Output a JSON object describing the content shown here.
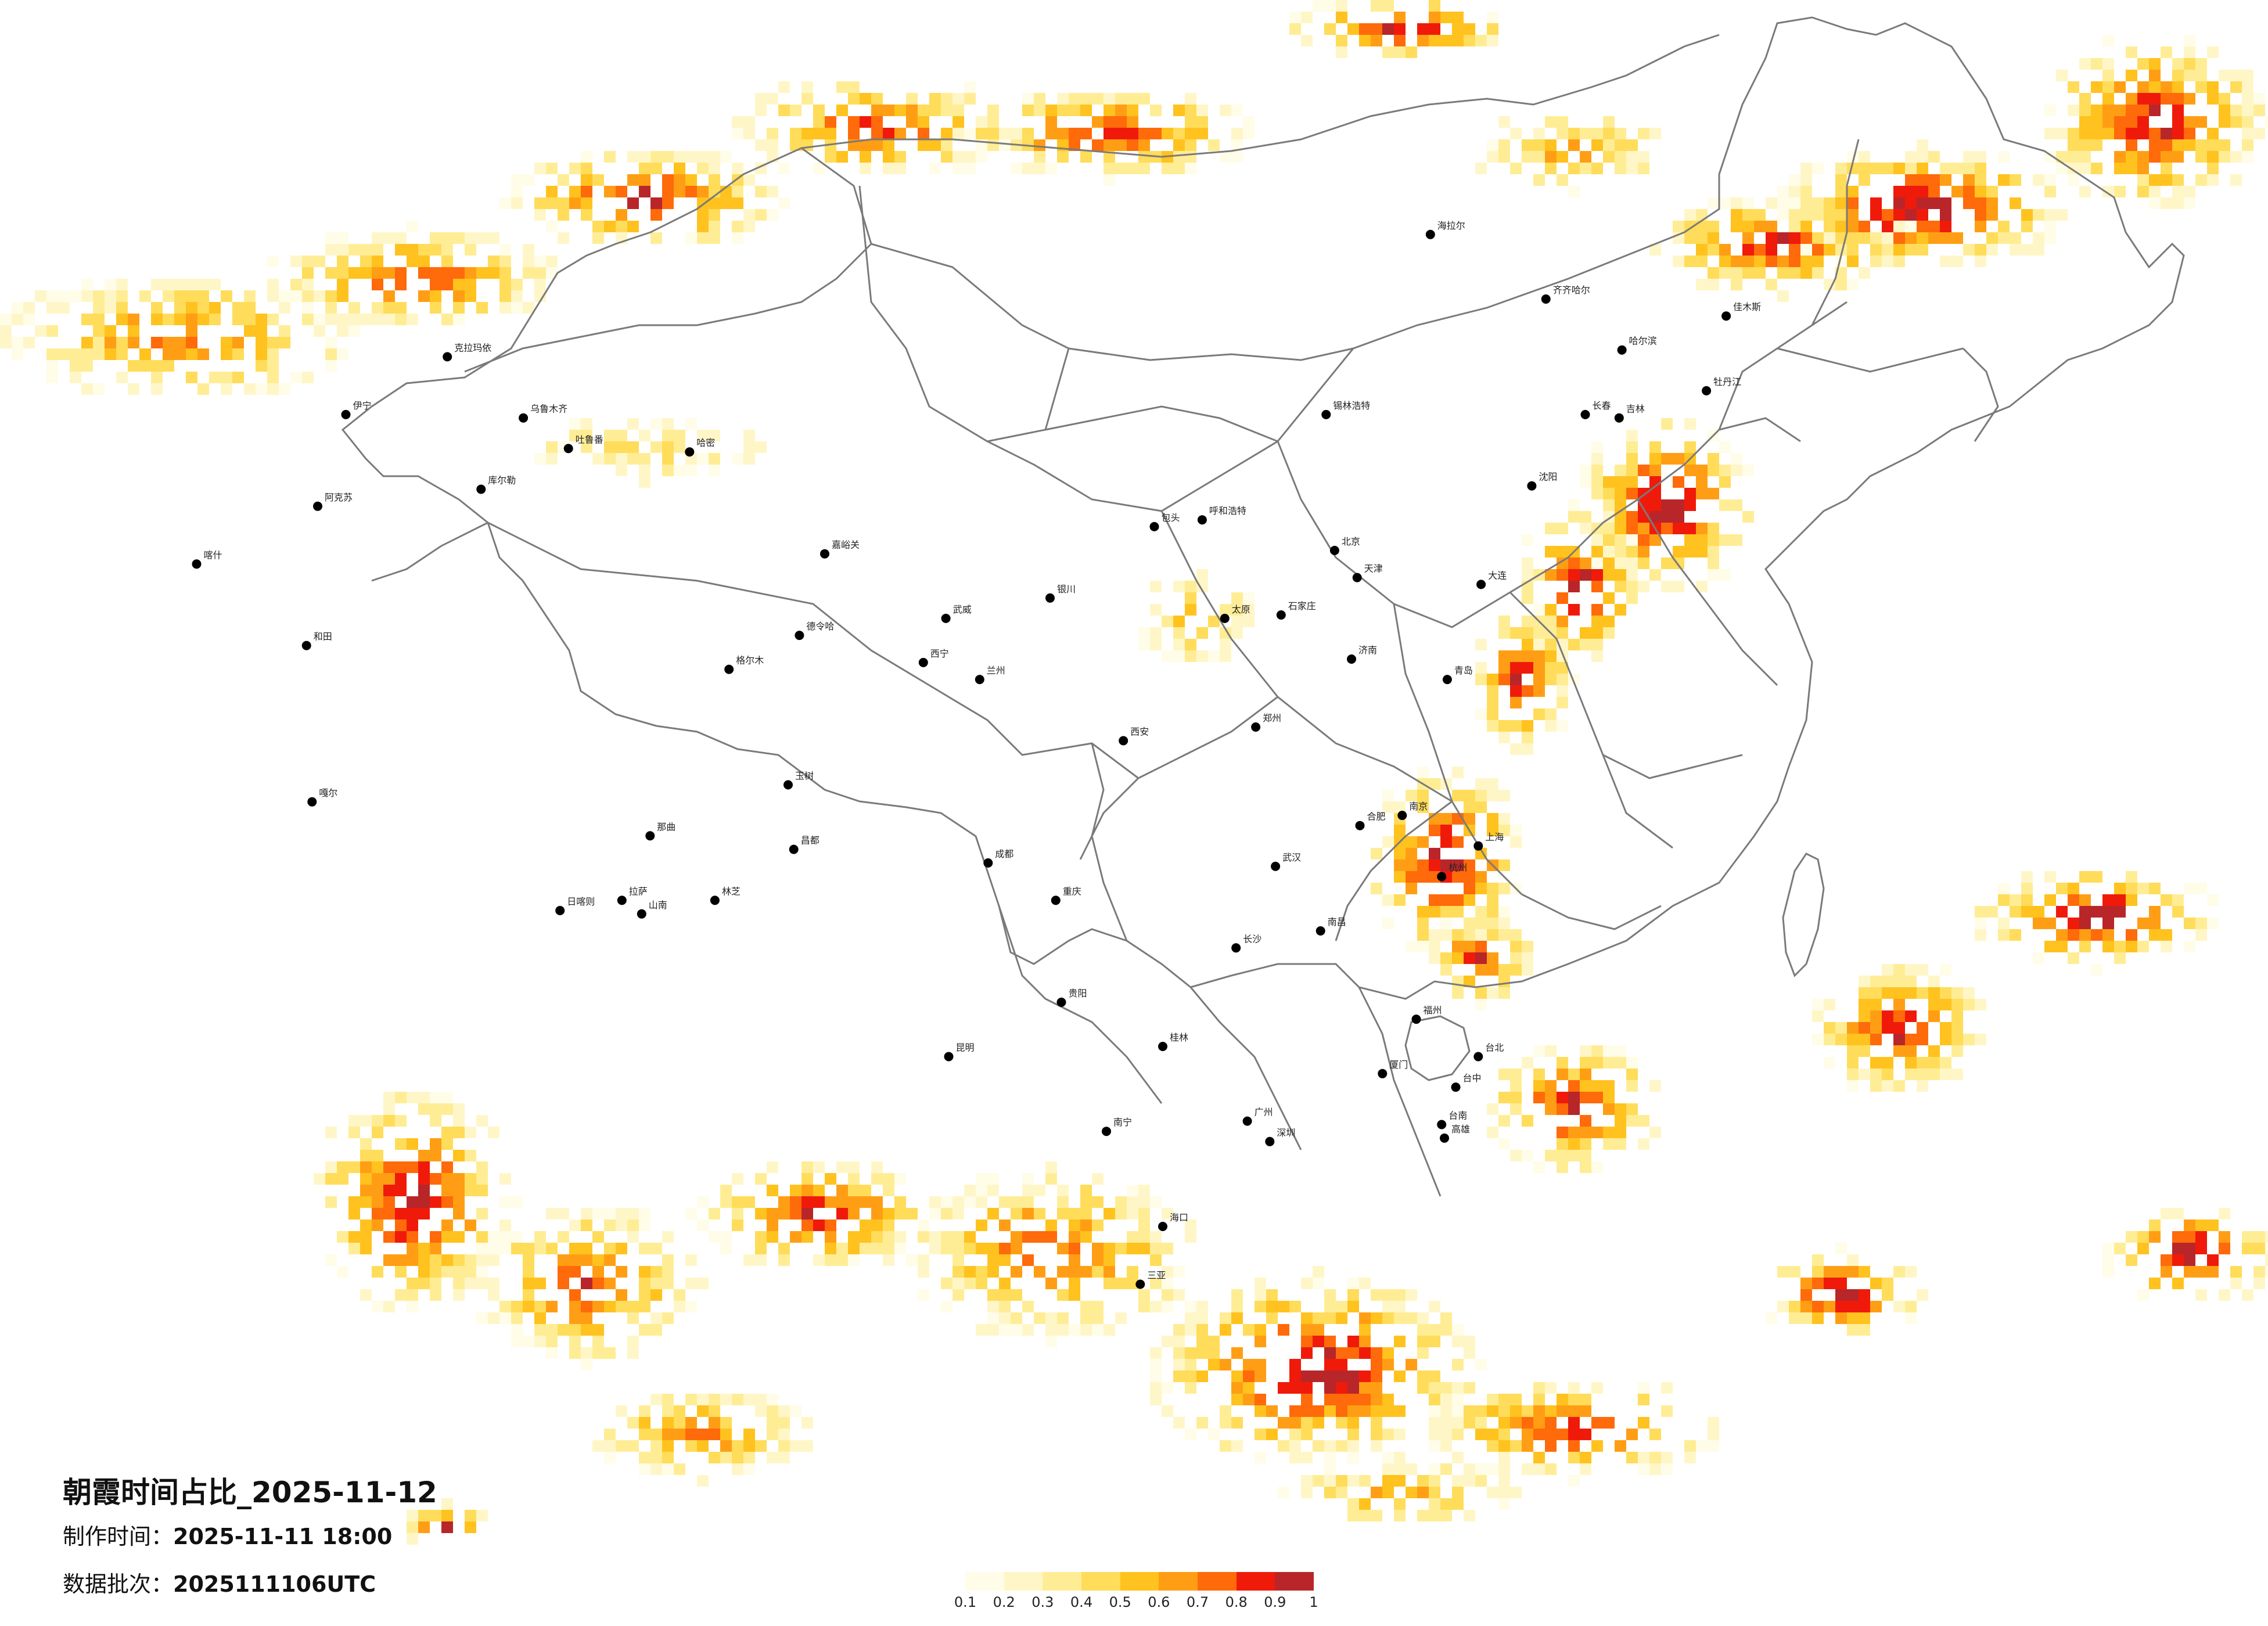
{
  "title": "朝霞时间占比_2025-11-12",
  "made_time_label": "制作时间：",
  "made_time": "2025-11-11 18:00",
  "batch_label": "数据批次：",
  "batch": "2025111106UTC",
  "legend": {
    "colors": [
      "#fffce8",
      "#fff6c8",
      "#ffed96",
      "#ffdc5a",
      "#ffc21e",
      "#ff9e14",
      "#ff6a0a",
      "#f01a0a",
      "#b8262a"
    ],
    "labels": [
      "0.1",
      "0.2",
      "0.3",
      "0.4",
      "0.5",
      "0.6",
      "0.7",
      "0.8",
      "0.9",
      "1"
    ]
  },
  "cities": [
    {
      "name": "乌鲁木齐",
      "lon": 87.6,
      "lat": 43.8
    },
    {
      "name": "哈密",
      "lon": 93.5,
      "lat": 42.8
    },
    {
      "name": "吐鲁番",
      "lon": 89.2,
      "lat": 42.9
    },
    {
      "name": "库尔勒",
      "lon": 86.1,
      "lat": 41.7
    },
    {
      "name": "阿克苏",
      "lon": 80.3,
      "lat": 41.2
    },
    {
      "name": "喀什",
      "lon": 76.0,
      "lat": 39.5
    },
    {
      "name": "和田",
      "lon": 79.9,
      "lat": 37.1
    },
    {
      "name": "伊宁",
      "lon": 81.3,
      "lat": 43.9
    },
    {
      "name": "克拉玛依",
      "lon": 84.9,
      "lat": 45.6
    },
    {
      "name": "嘎尔",
      "lon": 80.1,
      "lat": 32.5
    },
    {
      "name": "拉萨",
      "lon": 91.1,
      "lat": 29.6
    },
    {
      "name": "日喀则",
      "lon": 88.9,
      "lat": 29.3
    },
    {
      "name": "山南",
      "lon": 91.8,
      "lat": 29.2
    },
    {
      "name": "林芝",
      "lon": 94.4,
      "lat": 29.6
    },
    {
      "name": "昌都",
      "lon": 97.2,
      "lat": 31.1
    },
    {
      "name": "那曲",
      "lon": 92.1,
      "lat": 31.5
    },
    {
      "name": "格尔木",
      "lon": 94.9,
      "lat": 36.4
    },
    {
      "name": "德令哈",
      "lon": 97.4,
      "lat": 37.4
    },
    {
      "name": "西宁",
      "lon": 101.8,
      "lat": 36.6
    },
    {
      "name": "玉树",
      "lon": 97.0,
      "lat": 33.0
    },
    {
      "name": "兰州",
      "lon": 103.8,
      "lat": 36.1
    },
    {
      "name": "嘉峪关",
      "lon": 98.3,
      "lat": 39.8
    },
    {
      "name": "武威",
      "lon": 102.6,
      "lat": 37.9
    },
    {
      "name": "银川",
      "lon": 106.3,
      "lat": 38.5
    },
    {
      "name": "呼和浩特",
      "lon": 111.7,
      "lat": 40.8
    },
    {
      "name": "包头",
      "lon": 110.0,
      "lat": 40.6
    },
    {
      "name": "锡林浩特",
      "lon": 116.1,
      "lat": 43.9
    },
    {
      "name": "海拉尔",
      "lon": 119.8,
      "lat": 49.2
    },
    {
      "name": "齐齐哈尔",
      "lon": 123.9,
      "lat": 47.3
    },
    {
      "name": "哈尔滨",
      "lon": 126.6,
      "lat": 45.8
    },
    {
      "name": "长春",
      "lon": 125.3,
      "lat": 43.9
    },
    {
      "name": "吉林",
      "lon": 126.5,
      "lat": 43.8
    },
    {
      "name": "沈阳",
      "lon": 123.4,
      "lat": 41.8
    },
    {
      "name": "大连",
      "lon": 121.6,
      "lat": 38.9
    },
    {
      "name": "牡丹江",
      "lon": 129.6,
      "lat": 44.6
    },
    {
      "name": "佳木斯",
      "lon": 130.3,
      "lat": 46.8
    },
    {
      "name": "北京",
      "lon": 116.4,
      "lat": 39.9
    },
    {
      "name": "天津",
      "lon": 117.2,
      "lat": 39.1
    },
    {
      "name": "石家庄",
      "lon": 114.5,
      "lat": 38.0
    },
    {
      "name": "太原",
      "lon": 112.5,
      "lat": 37.9
    },
    {
      "name": "济南",
      "lon": 117.0,
      "lat": 36.7
    },
    {
      "name": "青岛",
      "lon": 120.4,
      "lat": 36.1
    },
    {
      "name": "郑州",
      "lon": 113.6,
      "lat": 34.7
    },
    {
      "name": "西安",
      "lon": 108.9,
      "lat": 34.3
    },
    {
      "name": "武汉",
      "lon": 114.3,
      "lat": 30.6
    },
    {
      "name": "合肥",
      "lon": 117.3,
      "lat": 31.8
    },
    {
      "name": "南京",
      "lon": 118.8,
      "lat": 32.1
    },
    {
      "name": "上海",
      "lon": 121.5,
      "lat": 31.2
    },
    {
      "name": "杭州",
      "lon": 120.2,
      "lat": 30.3
    },
    {
      "name": "南昌",
      "lon": 115.9,
      "lat": 28.7
    },
    {
      "name": "长沙",
      "lon": 112.9,
      "lat": 28.2
    },
    {
      "name": "福州",
      "lon": 119.3,
      "lat": 26.1
    },
    {
      "name": "厦门",
      "lon": 118.1,
      "lat": 24.5
    },
    {
      "name": "广州",
      "lon": 113.3,
      "lat": 23.1
    },
    {
      "name": "深圳",
      "lon": 114.1,
      "lat": 22.5
    },
    {
      "name": "南宁",
      "lon": 108.3,
      "lat": 22.8
    },
    {
      "name": "海口",
      "lon": 110.3,
      "lat": 20.0
    },
    {
      "name": "三亚",
      "lon": 109.5,
      "lat": 18.3
    },
    {
      "name": "贵阳",
      "lon": 106.7,
      "lat": 26.6
    },
    {
      "name": "昆明",
      "lon": 102.7,
      "lat": 25.0
    },
    {
      "name": "成都",
      "lon": 104.1,
      "lat": 30.7
    },
    {
      "name": "重庆",
      "lon": 106.5,
      "lat": 29.6
    },
    {
      "name": "桂林",
      "lon": 110.3,
      "lat": 25.3
    },
    {
      "name": "台北",
      "lon": 121.5,
      "lat": 25.0
    },
    {
      "name": "台中",
      "lon": 120.7,
      "lat": 24.1
    },
    {
      "name": "台南",
      "lon": 120.2,
      "lat": 23.0
    },
    {
      "name": "高雄",
      "lon": 120.3,
      "lat": 22.6
    }
  ]
}
